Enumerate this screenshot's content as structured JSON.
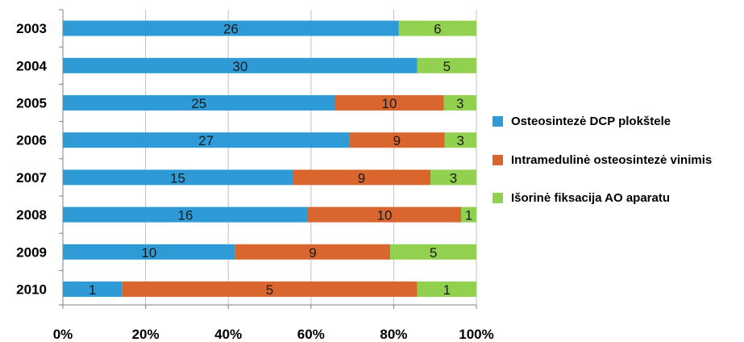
{
  "chart_data": {
    "type": "bar",
    "orientation": "horizontal",
    "stacking": "percent",
    "categories": [
      "2003",
      "2004",
      "2005",
      "2006",
      "2007",
      "2008",
      "2009",
      "2010"
    ],
    "series": [
      {
        "name": "Osteosintezė DCP plokštele",
        "color": "#2E9BD6",
        "values": [
          26,
          30,
          25,
          27,
          15,
          16,
          10,
          1
        ]
      },
      {
        "name": "Intramedulinė osteosintezė vinimis",
        "color": "#D9662E",
        "values": [
          0,
          0,
          10,
          9,
          9,
          10,
          9,
          5
        ]
      },
      {
        "name": "Išorinė fiksacija AO aparatu",
        "color": "#92D050",
        "values": [
          6,
          5,
          3,
          3,
          3,
          1,
          5,
          1
        ]
      }
    ],
    "x_ticks": [
      "0%",
      "20%",
      "40%",
      "60%",
      "80%",
      "100%"
    ],
    "xlim": [
      0,
      100
    ],
    "grid": true,
    "legend_position": "right"
  }
}
